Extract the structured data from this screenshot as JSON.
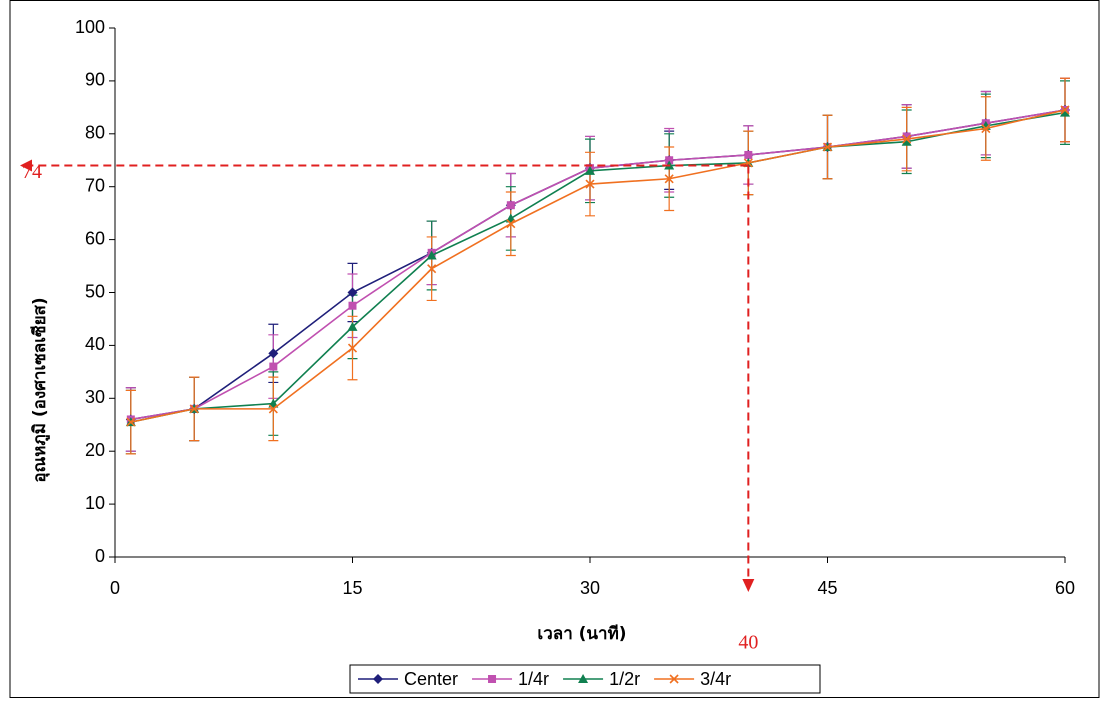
{
  "chart_data": {
    "type": "line",
    "x_label": "เวลา (นาที)",
    "y_label": "อุณหภูมิ (องศาเซลเซียส)",
    "x": [
      1,
      5,
      10,
      15,
      20,
      25,
      30,
      35,
      40,
      45,
      50,
      55,
      60
    ],
    "series": [
      {
        "name": "Center",
        "color": "#1f1f7a",
        "marker": "diamond",
        "values": [
          26,
          28,
          38.5,
          50,
          57.5,
          66.5,
          73.5,
          75,
          76,
          77.5,
          79.5,
          82,
          84.5
        ],
        "errors": [
          6,
          6,
          5.5,
          5.5,
          6,
          6,
          6,
          5.5,
          5.5,
          6,
          6,
          6,
          6
        ]
      },
      {
        "name": "1/4r",
        "color": "#c050b0",
        "marker": "square",
        "values": [
          26,
          28,
          36,
          47.5,
          57.5,
          66.5,
          73.5,
          75,
          76,
          77.5,
          79.5,
          82,
          84.5
        ],
        "errors": [
          6,
          6,
          6,
          6,
          6,
          6,
          6,
          6,
          5.5,
          6,
          6,
          6,
          6
        ]
      },
      {
        "name": "1/2r",
        "color": "#108050",
        "marker": "triangle",
        "values": [
          25.5,
          28,
          29,
          43.5,
          57,
          64,
          73,
          74,
          74.5,
          77.5,
          78.5,
          81.5,
          84
        ],
        "errors": [
          6,
          6,
          6,
          6,
          6.5,
          6,
          6,
          6,
          6,
          6,
          6,
          6,
          6
        ]
      },
      {
        "name": "3/4r",
        "color": "#f07020",
        "marker": "x",
        "values": [
          25.5,
          28,
          28,
          39.5,
          54.5,
          63,
          70.5,
          71.5,
          74.5,
          77.5,
          79,
          81,
          84.5
        ],
        "errors": [
          6,
          6,
          6,
          6,
          6,
          6,
          6,
          6,
          6,
          6,
          6,
          6,
          6
        ]
      }
    ],
    "xlim": [
      0,
      60
    ],
    "xticks": [
      0,
      15,
      30,
      45,
      60
    ],
    "ylim": [
      0,
      100
    ],
    "yticks": [
      0,
      10,
      20,
      30,
      40,
      50,
      60,
      70,
      80,
      90,
      100
    ],
    "grid": false,
    "legend": "bottom",
    "reference": {
      "x": 40,
      "y": 74,
      "color": "#e02020"
    }
  }
}
